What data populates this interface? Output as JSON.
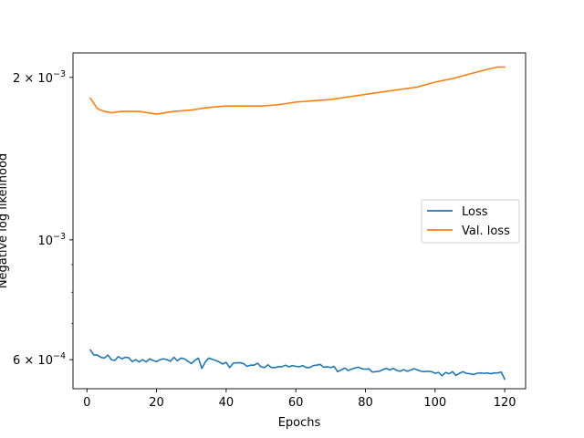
{
  "chart_data": {
    "type": "line",
    "title": "",
    "xlabel": "Epochs",
    "ylabel": "Negative log likelihood",
    "xlim": [
      -4,
      126
    ],
    "ylim": [
      0.00053,
      0.00222
    ],
    "yscale": "log",
    "grid": false,
    "legend_position": "center-right",
    "xticks": [
      0,
      20,
      40,
      60,
      80,
      100,
      120
    ],
    "xtick_labels": [
      "0",
      "20",
      "40",
      "60",
      "80",
      "100",
      "120"
    ],
    "yticks": [
      {
        "value": 0.002,
        "coef": "2",
        "exp": "−3"
      },
      {
        "value": 0.001,
        "coef": "",
        "exp": "−3"
      },
      {
        "value": 0.0006,
        "coef": "6",
        "exp": "−4"
      }
    ],
    "series": [
      {
        "name": "Loss",
        "color": "#1f77b4",
        "x": [
          1,
          2,
          3,
          4,
          5,
          6,
          7,
          8,
          9,
          10,
          11,
          12,
          13,
          14,
          15,
          16,
          17,
          18,
          19,
          20,
          21,
          22,
          23,
          24,
          25,
          26,
          27,
          28,
          29,
          30,
          31,
          32,
          33,
          34,
          35,
          36,
          37,
          38,
          39,
          40,
          41,
          42,
          43,
          44,
          45,
          46,
          47,
          48,
          49,
          50,
          51,
          52,
          53,
          54,
          55,
          56,
          57,
          58,
          59,
          60,
          61,
          62,
          63,
          64,
          65,
          66,
          67,
          68,
          69,
          70,
          71,
          72,
          73,
          74,
          75,
          76,
          77,
          78,
          79,
          80,
          81,
          82,
          83,
          84,
          85,
          86,
          87,
          88,
          89,
          90,
          91,
          92,
          93,
          94,
          95,
          96,
          97,
          98,
          99,
          100,
          101,
          102,
          103,
          104,
          105,
          106,
          107,
          108,
          109,
          110,
          111,
          112,
          113,
          114,
          115,
          116,
          117,
          118,
          119,
          120
        ],
        "y": [
          0.000625,
          0.000612,
          0.000612,
          0.000606,
          0.000604,
          0.000612,
          0.0006,
          0.000598,
          0.000608,
          0.000602,
          0.000606,
          0.000605,
          0.000595,
          0.0006,
          0.000594,
          0.0006,
          0.000594,
          0.000602,
          0.000598,
          0.000595,
          0.0006,
          0.000602,
          0.0006,
          0.000596,
          0.000606,
          0.000597,
          0.000604,
          0.000602,
          0.000596,
          0.00059,
          0.000598,
          0.000604,
          0.000578,
          0.000594,
          0.000604,
          0.000601,
          0.000598,
          0.000594,
          0.000589,
          0.000593,
          0.00058,
          0.000591,
          0.000592,
          0.000592,
          0.00059,
          0.000583,
          0.000586,
          0.000586,
          0.000591,
          0.000582,
          0.00058,
          0.000587,
          0.00058,
          0.00058,
          0.000582,
          0.000582,
          0.000586,
          0.000582,
          0.000585,
          0.000583,
          0.000582,
          0.000585,
          0.00058,
          0.00058,
          0.000585,
          0.000586,
          0.000588,
          0.000581,
          0.000582,
          0.00058,
          0.000583,
          0.00057,
          0.000574,
          0.000579,
          0.000573,
          0.000576,
          0.000579,
          0.000581,
          0.000577,
          0.000576,
          0.000577,
          0.000569,
          0.00057,
          0.000571,
          0.000575,
          0.000578,
          0.000574,
          0.000578,
          0.000573,
          0.000571,
          0.000575,
          0.000571,
          0.000574,
          0.000577,
          0.000574,
          0.000571,
          0.00057,
          0.000571,
          0.00057,
          0.000566,
          0.000568,
          0.00056,
          0.000568,
          0.000565,
          0.00057,
          0.000561,
          0.000566,
          0.00057,
          0.000566,
          0.000565,
          0.000563,
          0.000566,
          0.000567,
          0.000566,
          0.000567,
          0.000565,
          0.000567,
          0.000567,
          0.000569,
          0.000552
        ]
      },
      {
        "name": "Val. loss",
        "color": "#ff7f0e",
        "x": [
          1,
          2,
          3,
          5,
          7,
          10,
          15,
          20,
          25,
          30,
          35,
          40,
          45,
          50,
          55,
          60,
          65,
          70,
          75,
          80,
          85,
          90,
          95,
          100,
          105,
          110,
          115,
          118,
          120
        ],
        "y": [
          0.00183,
          0.00179,
          0.00175,
          0.00173,
          0.00172,
          0.00173,
          0.00173,
          0.00171,
          0.00173,
          0.00174,
          0.00176,
          0.00177,
          0.00177,
          0.00177,
          0.00178,
          0.0018,
          0.00181,
          0.00182,
          0.00184,
          0.00186,
          0.00188,
          0.0019,
          0.00192,
          0.00196,
          0.00199,
          0.00203,
          0.00207,
          0.00209,
          0.00209
        ]
      }
    ]
  }
}
